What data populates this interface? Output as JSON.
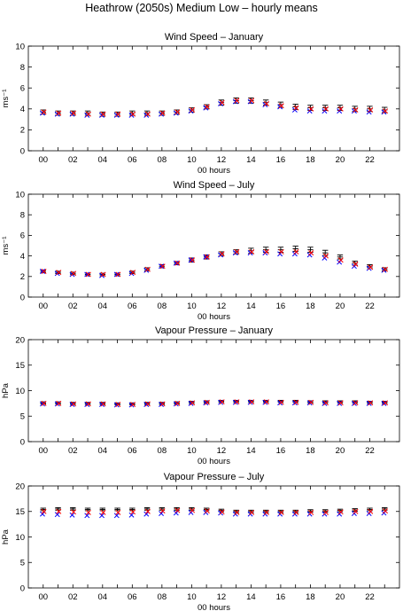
{
  "figure_title": "Heathrow (2050s) Medium Low – hourly means",
  "colors": {
    "observed": "#000000",
    "series_blue": "#0000ff",
    "series_red": "#ff0000"
  },
  "chart_data": [
    {
      "type": "scatter",
      "title": "Wind Speed – January",
      "xlabel": "00 hours",
      "ylabel": "ms⁻¹",
      "ylim": [
        0,
        10
      ],
      "yticks": [
        0,
        2,
        4,
        6,
        8,
        10
      ],
      "xtick_labels": [
        "00",
        "02",
        "04",
        "06",
        "08",
        "10",
        "12",
        "14",
        "16",
        "18",
        "20",
        "22"
      ],
      "x": [
        0,
        1,
        2,
        3,
        4,
        5,
        6,
        7,
        8,
        9,
        10,
        11,
        12,
        13,
        14,
        15,
        16,
        17,
        18,
        19,
        20,
        21,
        22,
        23
      ],
      "grid": false,
      "series": [
        {
          "marker": "errorbar",
          "color": "#000000",
          "values": [
            3.7,
            3.6,
            3.6,
            3.6,
            3.5,
            3.5,
            3.6,
            3.6,
            3.6,
            3.7,
            3.9,
            4.2,
            4.6,
            4.8,
            4.8,
            4.6,
            4.4,
            4.2,
            4.1,
            4.1,
            4.1,
            4.0,
            4.0,
            3.9
          ],
          "err": [
            0.2,
            0.2,
            0.2,
            0.2,
            0.2,
            0.2,
            0.2,
            0.2,
            0.2,
            0.2,
            0.2,
            0.2,
            0.25,
            0.25,
            0.25,
            0.25,
            0.25,
            0.25,
            0.25,
            0.25,
            0.25,
            0.25,
            0.25,
            0.25
          ]
        },
        {
          "marker": "x",
          "color": "#0000ff",
          "values": [
            3.6,
            3.5,
            3.5,
            3.4,
            3.4,
            3.4,
            3.4,
            3.4,
            3.5,
            3.6,
            3.8,
            4.1,
            4.5,
            4.7,
            4.7,
            4.4,
            4.2,
            3.9,
            3.8,
            3.8,
            3.8,
            3.8,
            3.7,
            3.7
          ]
        },
        {
          "marker": "x",
          "color": "#ff0000",
          "values": [
            3.7,
            3.6,
            3.6,
            3.5,
            3.5,
            3.5,
            3.5,
            3.5,
            3.6,
            3.7,
            3.9,
            4.2,
            4.6,
            4.8,
            4.8,
            4.5,
            4.3,
            4.1,
            4.0,
            4.0,
            4.0,
            3.9,
            3.9,
            3.8
          ]
        }
      ]
    },
    {
      "type": "scatter",
      "title": "Wind Speed – July",
      "xlabel": "00 hours",
      "ylabel": "ms⁻¹",
      "ylim": [
        0,
        10
      ],
      "yticks": [
        0,
        2,
        4,
        6,
        8,
        10
      ],
      "xtick_labels": [
        "00",
        "02",
        "04",
        "06",
        "08",
        "10",
        "12",
        "14",
        "16",
        "18",
        "20",
        "22"
      ],
      "x": [
        0,
        1,
        2,
        3,
        4,
        5,
        6,
        7,
        8,
        9,
        10,
        11,
        12,
        13,
        14,
        15,
        16,
        17,
        18,
        19,
        20,
        21,
        22,
        23
      ],
      "grid": false,
      "series": [
        {
          "marker": "errorbar",
          "color": "#000000",
          "values": [
            2.5,
            2.4,
            2.3,
            2.2,
            2.2,
            2.2,
            2.4,
            2.7,
            3.0,
            3.3,
            3.6,
            3.9,
            4.2,
            4.4,
            4.5,
            4.6,
            4.6,
            4.7,
            4.6,
            4.3,
            3.9,
            3.3,
            3.0,
            2.7
          ],
          "err": [
            0.12,
            0.12,
            0.12,
            0.12,
            0.12,
            0.12,
            0.12,
            0.15,
            0.15,
            0.15,
            0.2,
            0.2,
            0.2,
            0.2,
            0.25,
            0.25,
            0.25,
            0.25,
            0.25,
            0.25,
            0.2,
            0.2,
            0.15,
            0.15
          ]
        },
        {
          "marker": "x",
          "color": "#0000ff",
          "values": [
            2.5,
            2.3,
            2.2,
            2.2,
            2.1,
            2.2,
            2.3,
            2.6,
            3.0,
            3.3,
            3.6,
            3.9,
            4.1,
            4.3,
            4.3,
            4.3,
            4.2,
            4.2,
            4.1,
            3.8,
            3.4,
            3.0,
            2.8,
            2.6
          ]
        },
        {
          "marker": "x",
          "color": "#ff0000",
          "values": [
            2.5,
            2.4,
            2.3,
            2.2,
            2.2,
            2.2,
            2.4,
            2.7,
            3.0,
            3.3,
            3.6,
            3.9,
            4.2,
            4.4,
            4.4,
            4.4,
            4.4,
            4.4,
            4.3,
            4.0,
            3.6,
            3.2,
            2.9,
            2.7
          ]
        }
      ]
    },
    {
      "type": "scatter",
      "title": "Vapour Pressure – January",
      "xlabel": "00 hours",
      "ylabel": "hPa",
      "ylim": [
        0,
        20
      ],
      "yticks": [
        0,
        5,
        10,
        15,
        20
      ],
      "xtick_labels": [
        "00",
        "02",
        "04",
        "06",
        "08",
        "10",
        "12",
        "14",
        "16",
        "18",
        "20",
        "22"
      ],
      "x": [
        0,
        1,
        2,
        3,
        4,
        5,
        6,
        7,
        8,
        9,
        10,
        11,
        12,
        13,
        14,
        15,
        16,
        17,
        18,
        19,
        20,
        21,
        22,
        23
      ],
      "grid": false,
      "series": [
        {
          "marker": "errorbar",
          "color": "#000000",
          "values": [
            7.6,
            7.6,
            7.5,
            7.5,
            7.5,
            7.4,
            7.4,
            7.5,
            7.5,
            7.6,
            7.7,
            7.8,
            7.9,
            7.9,
            7.9,
            7.9,
            7.9,
            7.9,
            7.8,
            7.8,
            7.8,
            7.8,
            7.7,
            7.7
          ],
          "err": [
            0.2,
            0.2,
            0.2,
            0.2,
            0.2,
            0.2,
            0.2,
            0.2,
            0.2,
            0.2,
            0.2,
            0.2,
            0.2,
            0.2,
            0.2,
            0.2,
            0.2,
            0.2,
            0.2,
            0.2,
            0.2,
            0.2,
            0.2,
            0.2
          ]
        },
        {
          "marker": "x",
          "color": "#0000ff",
          "values": [
            7.4,
            7.4,
            7.3,
            7.3,
            7.3,
            7.2,
            7.2,
            7.3,
            7.3,
            7.4,
            7.5,
            7.6,
            7.7,
            7.7,
            7.7,
            7.7,
            7.6,
            7.6,
            7.6,
            7.5,
            7.5,
            7.5,
            7.5,
            7.5
          ]
        },
        {
          "marker": "x",
          "color": "#ff0000",
          "values": [
            7.5,
            7.5,
            7.4,
            7.4,
            7.4,
            7.3,
            7.3,
            7.4,
            7.4,
            7.5,
            7.6,
            7.7,
            7.8,
            7.8,
            7.8,
            7.8,
            7.7,
            7.7,
            7.7,
            7.6,
            7.6,
            7.6,
            7.6,
            7.6
          ]
        }
      ]
    },
    {
      "type": "scatter",
      "title": "Vapour Pressure – July",
      "xlabel": "00 hours",
      "ylabel": "hPa",
      "ylim": [
        0,
        20
      ],
      "yticks": [
        0,
        5,
        10,
        15,
        20
      ],
      "xtick_labels": [
        "00",
        "02",
        "04",
        "06",
        "08",
        "10",
        "12",
        "14",
        "16",
        "18",
        "20",
        "22"
      ],
      "x": [
        0,
        1,
        2,
        3,
        4,
        5,
        6,
        7,
        8,
        9,
        10,
        11,
        12,
        13,
        14,
        15,
        16,
        17,
        18,
        19,
        20,
        21,
        22,
        23
      ],
      "grid": false,
      "series": [
        {
          "marker": "errorbar",
          "color": "#000000",
          "values": [
            15.4,
            15.5,
            15.5,
            15.4,
            15.4,
            15.4,
            15.4,
            15.5,
            15.5,
            15.5,
            15.5,
            15.4,
            15.2,
            15.0,
            15.0,
            15.0,
            15.0,
            15.0,
            15.1,
            15.1,
            15.2,
            15.3,
            15.4,
            15.5
          ],
          "err": [
            0.25,
            0.25,
            0.25,
            0.25,
            0.25,
            0.25,
            0.25,
            0.25,
            0.25,
            0.25,
            0.25,
            0.25,
            0.25,
            0.25,
            0.25,
            0.25,
            0.25,
            0.25,
            0.25,
            0.25,
            0.25,
            0.25,
            0.25,
            0.25
          ]
        },
        {
          "marker": "x",
          "color": "#0000ff",
          "values": [
            14.5,
            14.4,
            14.3,
            14.2,
            14.2,
            14.2,
            14.3,
            14.5,
            14.6,
            14.7,
            14.8,
            14.8,
            14.7,
            14.5,
            14.5,
            14.5,
            14.5,
            14.5,
            14.5,
            14.5,
            14.5,
            14.6,
            14.6,
            14.7
          ],
          "err": [
            0,
            0,
            0,
            0,
            0,
            0,
            0,
            0,
            0,
            0,
            0,
            0,
            0,
            0,
            0,
            0,
            0,
            0,
            0,
            0,
            0,
            0,
            0,
            0
          ]
        },
        {
          "marker": "x",
          "color": "#ff0000",
          "values": [
            15.0,
            15.0,
            14.9,
            14.8,
            14.8,
            14.8,
            14.9,
            15.0,
            15.1,
            15.2,
            15.2,
            15.1,
            14.9,
            14.8,
            14.8,
            14.8,
            14.8,
            14.8,
            14.8,
            14.8,
            14.9,
            15.0,
            15.0,
            15.1
          ]
        }
      ]
    }
  ]
}
